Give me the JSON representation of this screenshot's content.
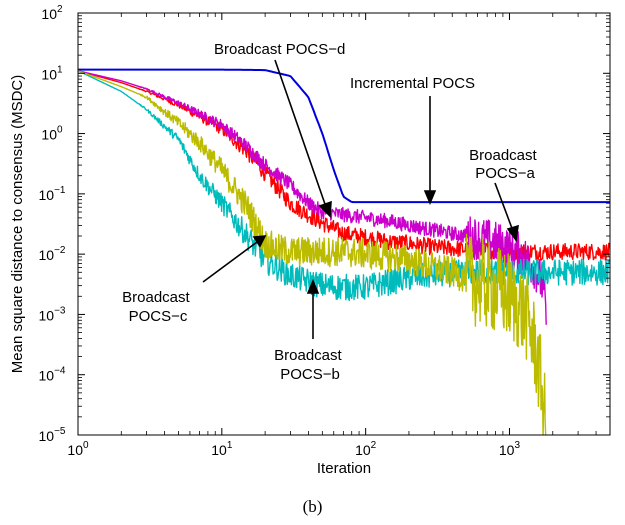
{
  "chart_data": {
    "type": "line",
    "xlabel": "Iteration",
    "ylabel": "Mean square distance to consensus (MSDC)",
    "xscale": "log",
    "yscale": "log",
    "xlim": [
      1,
      5000
    ],
    "ylim": [
      1e-05,
      100
    ],
    "x_ticks": [
      {
        "base": "10",
        "exp": "0"
      },
      {
        "base": "10",
        "exp": "1"
      },
      {
        "base": "10",
        "exp": "2"
      },
      {
        "base": "10",
        "exp": "3"
      }
    ],
    "y_ticks": [
      {
        "base": "10",
        "exp": "−5"
      },
      {
        "base": "10",
        "exp": "−4"
      },
      {
        "base": "10",
        "exp": "−3"
      },
      {
        "base": "10",
        "exp": "−2"
      },
      {
        "base": "10",
        "exp": "−1"
      },
      {
        "base": "10",
        "exp": "0"
      },
      {
        "base": "10",
        "exp": "1"
      },
      {
        "base": "10",
        "exp": "2"
      }
    ],
    "grid": false,
    "legend": "none",
    "series": [
      {
        "color": "#0000dd",
        "noise": 0,
        "x": [
          1,
          10,
          20,
          30,
          40,
          50,
          60,
          70,
          80,
          100,
          1000,
          5000
        ],
        "y": [
          11.5,
          11.5,
          11.3,
          9.0,
          4.0,
          1.0,
          0.25,
          0.09,
          0.073,
          0.073,
          0.073,
          0.073
        ]
      },
      {
        "color": "#ff0000",
        "noise": 0.14,
        "x": [
          1,
          2,
          3,
          5,
          10,
          15,
          20,
          30,
          40,
          50,
          70,
          100,
          150,
          200,
          300,
          500,
          1000,
          2000,
          5000
        ],
        "y": [
          11,
          7,
          5,
          3,
          1.2,
          0.5,
          0.22,
          0.07,
          0.045,
          0.033,
          0.022,
          0.019,
          0.016,
          0.015,
          0.013,
          0.012,
          0.011,
          0.011,
          0.011
        ]
      },
      {
        "color": "#cc00cc",
        "noise": 0.12,
        "x": [
          1,
          2,
          3,
          5,
          10,
          15,
          20,
          30,
          40,
          50,
          70,
          100,
          150,
          200,
          300,
          500,
          700,
          900,
          1000,
          1200,
          1500,
          1700,
          1800
        ],
        "y": [
          11,
          7.5,
          5.5,
          3.2,
          1.4,
          0.6,
          0.3,
          0.14,
          0.07,
          0.05,
          0.045,
          0.04,
          0.035,
          0.03,
          0.025,
          0.02,
          0.017,
          0.014,
          0.012,
          0.01,
          0.006,
          0.003,
          0.001
        ]
      },
      {
        "color": "#00bbbb",
        "noise": 0.22,
        "x": [
          1,
          2,
          3,
          5,
          7,
          10,
          15,
          20,
          30,
          40,
          50,
          70,
          100,
          150,
          200,
          300,
          500,
          1000,
          2000,
          5000
        ],
        "y": [
          11,
          5,
          2.5,
          0.8,
          0.2,
          0.07,
          0.02,
          0.008,
          0.0045,
          0.0035,
          0.003,
          0.0028,
          0.0028,
          0.0035,
          0.004,
          0.0045,
          0.005,
          0.005,
          0.005,
          0.005
        ]
      },
      {
        "color": "#bbbb00",
        "noise": 0.25,
        "x": [
          1,
          2,
          3,
          5,
          7,
          10,
          15,
          18,
          20,
          25,
          30,
          50,
          70,
          100,
          150,
          200,
          300,
          400,
          500,
          700,
          1000,
          1300,
          1500,
          1700,
          1800
        ],
        "y": [
          11,
          6,
          4,
          1.5,
          0.7,
          0.25,
          0.06,
          0.025,
          0.015,
          0.012,
          0.011,
          0.011,
          0.011,
          0.01,
          0.009,
          0.008,
          0.006,
          0.005,
          0.004,
          0.003,
          0.002,
          0.001,
          0.0003,
          5e-05,
          1e-05
        ]
      }
    ],
    "annotations": [
      {
        "lines": [
          "Broadcast POCS−d"
        ]
      },
      {
        "lines": [
          "Incremental POCS"
        ]
      },
      {
        "lines": [
          "Broadcast",
          "POCS−a"
        ]
      },
      {
        "lines": [
          "Broadcast",
          "POCS−c"
        ]
      },
      {
        "lines": [
          "Broadcast",
          "POCS−b"
        ]
      }
    ]
  },
  "caption": "(b)"
}
